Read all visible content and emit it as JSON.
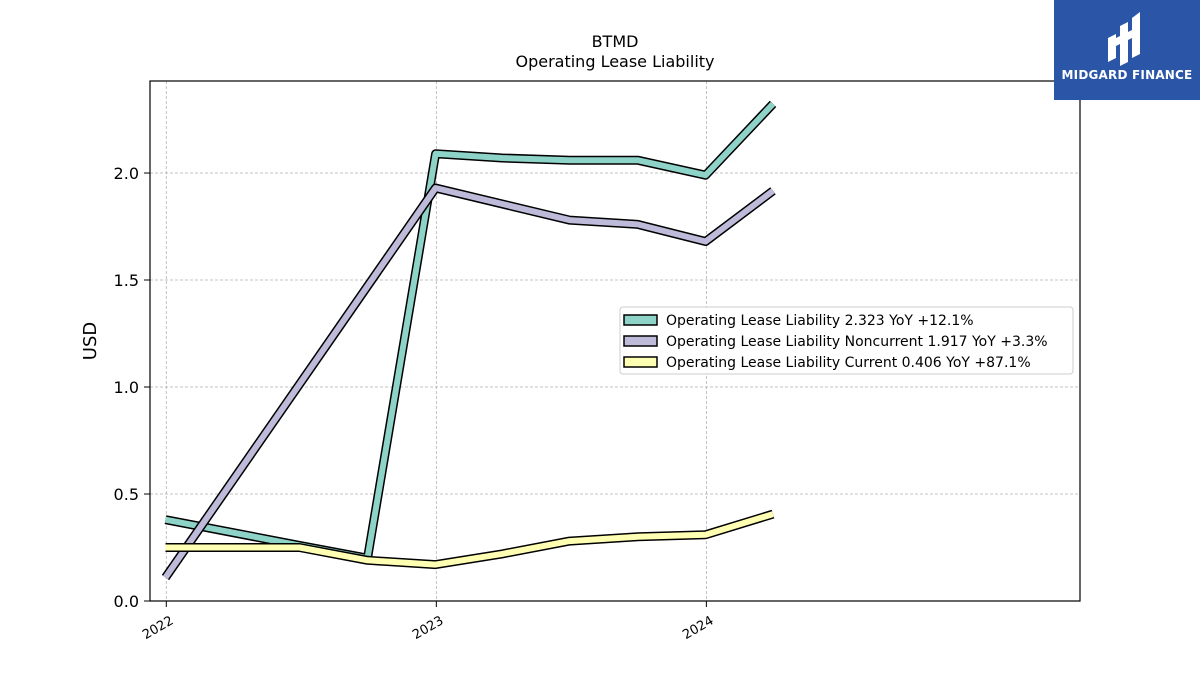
{
  "brand": {
    "name": "MIDGARD FINANCE",
    "color": "#2b56a8"
  },
  "chart_data": {
    "type": "line",
    "title": "BTMD",
    "subtitle": "Operating Lease Liability",
    "xlabel": "",
    "ylabel": "USD",
    "x_ticks": [
      "2022",
      "2023",
      "2024"
    ],
    "xlim": [
      "2021-12-10",
      "2025-05-20"
    ],
    "ylim": [
      0,
      2.43
    ],
    "y_ticks": [
      "0.0",
      "0.5",
      "1.0",
      "1.5",
      "2.0"
    ],
    "y_tick_values": [
      0.0,
      0.5,
      1.0,
      1.5,
      2.0
    ],
    "grid": true,
    "legend_position": "center-right",
    "series": [
      {
        "name": "Operating Lease Liability  2.323 YoY +12.1%",
        "color": "#8dd3c7",
        "points": [
          [
            "2021-12-31",
            0.38
          ],
          [
            "2022-06-30",
            0.26
          ],
          [
            "2022-09-30",
            0.2
          ],
          [
            "2022-12-31",
            2.09
          ],
          [
            "2023-03-31",
            2.07
          ],
          [
            "2023-06-30",
            2.06
          ],
          [
            "2023-09-30",
            2.06
          ],
          [
            "2023-12-31",
            1.99
          ],
          [
            "2024-03-31",
            2.323
          ]
        ]
      },
      {
        "name": "Operating Lease Liability Noncurrent  1.917 YoY +3.3%",
        "color": "#bebada",
        "points": [
          [
            "2021-12-31",
            0.11
          ],
          [
            "2022-12-31",
            1.93
          ],
          [
            "2023-06-30",
            1.78
          ],
          [
            "2023-09-30",
            1.76
          ],
          [
            "2023-12-31",
            1.68
          ],
          [
            "2024-03-31",
            1.917
          ]
        ]
      },
      {
        "name": "Operating Lease Liability Current  0.406 YoY +87.1%",
        "color": "#ffffb3",
        "points": [
          [
            "2021-12-31",
            0.25
          ],
          [
            "2022-06-30",
            0.25
          ],
          [
            "2022-09-30",
            0.19
          ],
          [
            "2022-12-31",
            0.17
          ],
          [
            "2023-03-31",
            0.22
          ],
          [
            "2023-06-30",
            0.28
          ],
          [
            "2023-09-30",
            0.3
          ],
          [
            "2023-12-31",
            0.31
          ],
          [
            "2024-03-31",
            0.406
          ]
        ]
      }
    ]
  }
}
